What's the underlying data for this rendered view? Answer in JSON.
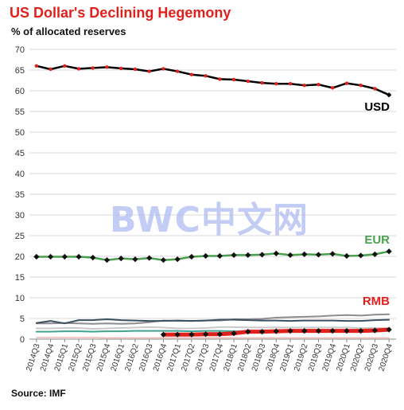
{
  "chart_data": {
    "type": "line",
    "title": "US Dollar's  Declining Hegemony",
    "subtitle": "% of allocated reserves",
    "source": "Source: IMF",
    "watermark": "BWC中文网",
    "ylim": [
      0,
      70
    ],
    "yticks": [
      0,
      5,
      10,
      15,
      20,
      25,
      30,
      35,
      40,
      45,
      50,
      55,
      60,
      65,
      70
    ],
    "grid": true,
    "categories": [
      "2014Q3",
      "2014Q4",
      "2015Q1",
      "2015Q2",
      "2015Q3",
      "2015Q4",
      "2016Q1",
      "2016Q2",
      "2016Q3",
      "2016Q4",
      "2017Q1",
      "2017Q2",
      "2017Q3",
      "2017Q4",
      "2018Q1",
      "2018Q2",
      "2018Q3",
      "2018Q4",
      "2019Q1",
      "2019Q2",
      "2019Q3",
      "2019Q4",
      "2020Q1",
      "2020Q2",
      "2020Q3",
      "2020Q4"
    ],
    "series": [
      {
        "name": "USD",
        "label": "USD",
        "color": "#000000",
        "marker_color": "#e0211b",
        "line_width": 2.5,
        "values": [
          66.0,
          65.2,
          66.0,
          65.3,
          65.5,
          65.7,
          65.4,
          65.2,
          64.7,
          65.3,
          64.7,
          63.9,
          63.6,
          62.8,
          62.7,
          62.3,
          61.9,
          61.7,
          61.7,
          61.3,
          61.5,
          60.7,
          61.8,
          61.3,
          60.5,
          59.0
        ]
      },
      {
        "name": "EUR",
        "label": "EUR",
        "color": "#4aa04e",
        "marker_color": "#111111",
        "line_width": 2.5,
        "values": [
          19.9,
          19.9,
          19.9,
          19.9,
          19.7,
          19.1,
          19.5,
          19.3,
          19.6,
          19.1,
          19.3,
          19.9,
          20.1,
          20.1,
          20.3,
          20.3,
          20.4,
          20.7,
          20.3,
          20.5,
          20.4,
          20.6,
          20.1,
          20.2,
          20.5,
          21.2
        ]
      },
      {
        "name": "RMB",
        "label": "RMB",
        "color": "#e0211b",
        "marker_color": "#111111",
        "line_width": 5,
        "values": [
          null,
          null,
          null,
          null,
          null,
          null,
          null,
          null,
          null,
          1.1,
          1.1,
          1.1,
          1.2,
          1.2,
          1.4,
          1.8,
          1.8,
          1.9,
          2.0,
          2.0,
          2.0,
          2.0,
          2.0,
          2.0,
          2.1,
          2.3
        ]
      },
      {
        "color": "#3d4f5f",
        "line_width": 2,
        "values": [
          3.9,
          4.4,
          3.8,
          4.6,
          4.6,
          4.8,
          4.6,
          4.5,
          4.4,
          4.4,
          4.5,
          4.4,
          4.5,
          4.7,
          4.7,
          4.6,
          4.5,
          4.5,
          4.4,
          4.5,
          4.5,
          4.5,
          4.4,
          4.4,
          4.6,
          4.7
        ]
      },
      {
        "color": "#8c8c92",
        "line_width": 2,
        "values": [
          3.8,
          3.8,
          3.9,
          3.8,
          3.7,
          3.8,
          3.7,
          3.8,
          4.1,
          4.5,
          4.4,
          4.4,
          4.5,
          4.5,
          4.8,
          4.8,
          4.9,
          5.2,
          5.3,
          5.4,
          5.5,
          5.7,
          5.8,
          5.7,
          5.9,
          6.0
        ]
      },
      {
        "color": "#3fa48f",
        "line_width": 2,
        "values": [
          1.8,
          1.8,
          1.9,
          1.9,
          1.8,
          1.9,
          1.9,
          2.0,
          2.0,
          2.0,
          2.0,
          1.9,
          2.0,
          2.0,
          1.9,
          1.9,
          1.8,
          1.9,
          1.9,
          1.9,
          1.9,
          1.9,
          2.0,
          2.0,
          2.0,
          2.0
        ]
      },
      {
        "color": "#c9c9c9",
        "line_width": 2,
        "values": [
          2.6,
          2.6,
          2.7,
          2.7,
          2.5,
          2.6,
          2.7,
          2.8,
          2.9,
          2.8,
          2.6,
          2.6,
          2.7,
          2.9,
          2.9,
          2.8,
          2.8,
          2.8,
          2.8,
          2.8,
          2.8,
          2.8,
          2.8,
          2.7,
          2.7,
          2.6
        ]
      },
      {
        "color": "#f2b7b7",
        "line_width": 1.5,
        "values": [
          0.4,
          0.4,
          0.4,
          0.4,
          0.4,
          0.3,
          0.3,
          0.3,
          0.3,
          0.3,
          0.3,
          0.3,
          0.3,
          0.3,
          0.3,
          0.3,
          0.3,
          0.3,
          0.3,
          0.3,
          0.3,
          0.3,
          0.3,
          0.3,
          0.3,
          0.3
        ]
      }
    ],
    "legend": "direct labels at right end"
  }
}
